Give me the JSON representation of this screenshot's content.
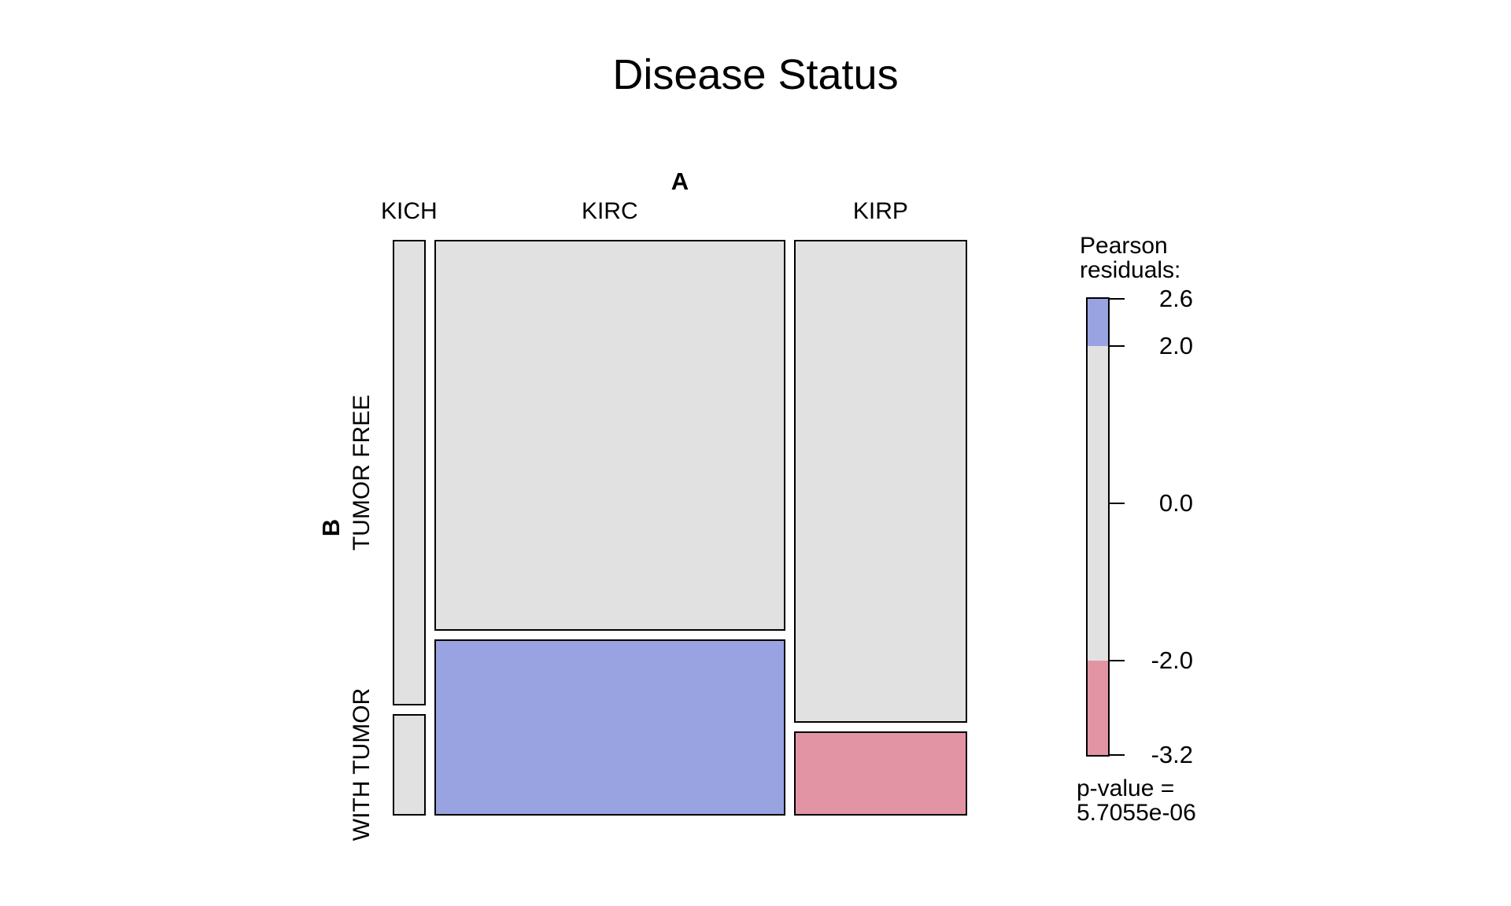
{
  "chart_data": {
    "type": "mosaic",
    "title": "Disease Status",
    "x_axis_name": "A",
    "y_axis_name": "B",
    "rows": [
      "TUMOR FREE",
      "WITH TUMOR"
    ],
    "columns": [
      {
        "label": "KICH",
        "width_share": 0.059,
        "row_shares": [
          0.821,
          0.179
        ]
      },
      {
        "label": "KIRC",
        "width_share": 0.63,
        "row_shares": [
          0.69,
          0.31
        ]
      },
      {
        "label": "KIRP",
        "width_share": 0.311,
        "row_shares": [
          0.852,
          0.148
        ]
      }
    ],
    "cell_fills": [
      [
        "#E1E1E1",
        "#E1E1E1"
      ],
      [
        "#E1E1E1",
        "#9AA3E1"
      ],
      [
        "#E1E1E1",
        "#E294A5"
      ]
    ],
    "cell_residual_bands": [
      [
        "neutral",
        "neutral"
      ],
      [
        "neutral",
        "positive > 2"
      ],
      [
        "neutral",
        "negative < -2"
      ]
    ],
    "colors": {
      "neutral": "#E1E1E1",
      "positive": "#9AA3E1",
      "negative": "#E294A5",
      "tile_border": "#000000"
    },
    "legend": {
      "title": [
        "Pearson",
        "residuals:"
      ],
      "max": 2.6,
      "min": -3.2,
      "ticks": [
        2.6,
        2.0,
        0.0,
        -2.0,
        -3.2
      ],
      "tick_labels": [
        "2.6",
        "2.0",
        "0.0",
        "-2.0",
        "-3.2"
      ],
      "segments": [
        {
          "from": 2.6,
          "to": 2.0,
          "color": "#9AA3E1"
        },
        {
          "from": 2.0,
          "to": -2.0,
          "color": "#E1E1E1"
        },
        {
          "from": -2.0,
          "to": -3.2,
          "color": "#E294A5"
        }
      ],
      "p_value": [
        "p-value =",
        "5.7055e-06"
      ]
    }
  }
}
